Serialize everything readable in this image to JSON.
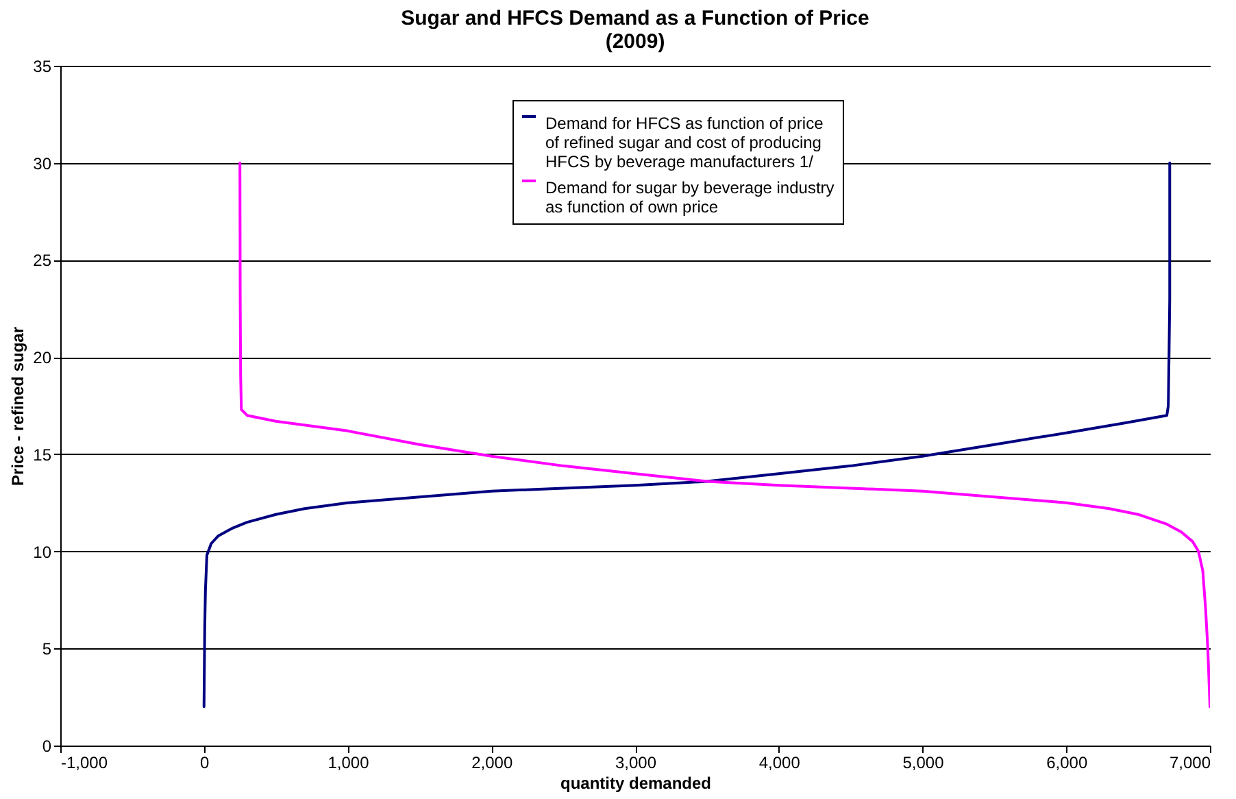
{
  "chart_data": {
    "type": "line",
    "title": "Sugar and HFCS Demand as a Function of Price\n(2009)",
    "xlabel": "quantity demanded",
    "ylabel": "Price - refined sugar",
    "series": [
      {
        "name": "Demand for HFCS as function of price of refined sugar and cost of producing HFCS by beverage manufacturers 1/",
        "color": "#000080",
        "x": [
          0,
          5,
          10,
          20,
          50,
          100,
          200,
          300,
          500,
          700,
          1000,
          1500,
          2000,
          2500,
          3000,
          3500,
          4000,
          4500,
          5000,
          5500,
          6000,
          6400,
          6700,
          6710,
          6715,
          6720,
          6720
        ],
        "values": [
          2,
          6,
          8,
          9.8,
          10.4,
          10.8,
          11.2,
          11.5,
          11.9,
          12.2,
          12.5,
          12.8,
          13.1,
          13.25,
          13.4,
          13.6,
          14,
          14.4,
          14.9,
          15.5,
          16.1,
          16.6,
          17,
          17.5,
          20,
          23,
          30
        ]
      },
      {
        "name": "Demand for sugar by beverage industry as function of own price",
        "color": "#ff00ff",
        "x": [
          250,
          252,
          255,
          260,
          300,
          500,
          1000,
          1500,
          2000,
          2500,
          3000,
          3500,
          4000,
          4500,
          5000,
          5500,
          6000,
          6300,
          6500,
          6700,
          6800,
          6880,
          6920,
          6950,
          6970,
          6985,
          7000
        ],
        "values": [
          30,
          23,
          19,
          17.3,
          17,
          16.7,
          16.2,
          15.5,
          14.9,
          14.4,
          14,
          13.6,
          13.4,
          13.25,
          13.1,
          12.8,
          12.5,
          12.2,
          11.9,
          11.4,
          11,
          10.5,
          10,
          9,
          7,
          5,
          2
        ]
      }
    ],
    "xlim": [
      -1000,
      7000
    ],
    "xticks": [
      {
        "value": -1000,
        "label": "-1,000"
      },
      0,
      {
        "value": 1000,
        "label": "1,000"
      },
      {
        "value": 2000,
        "label": "2,000"
      },
      {
        "value": 3000,
        "label": "3,000"
      },
      {
        "value": 4000,
        "label": "4,000"
      },
      {
        "value": 5000,
        "label": "5,000"
      },
      {
        "value": 6000,
        "label": "6,000"
      },
      {
        "value": 7000,
        "label": "7,000"
      }
    ],
    "ylim": [
      0,
      35
    ],
    "yticks": [
      0,
      5,
      10,
      15,
      20,
      25,
      30,
      35
    ],
    "grid": "y",
    "legend": "top"
  }
}
